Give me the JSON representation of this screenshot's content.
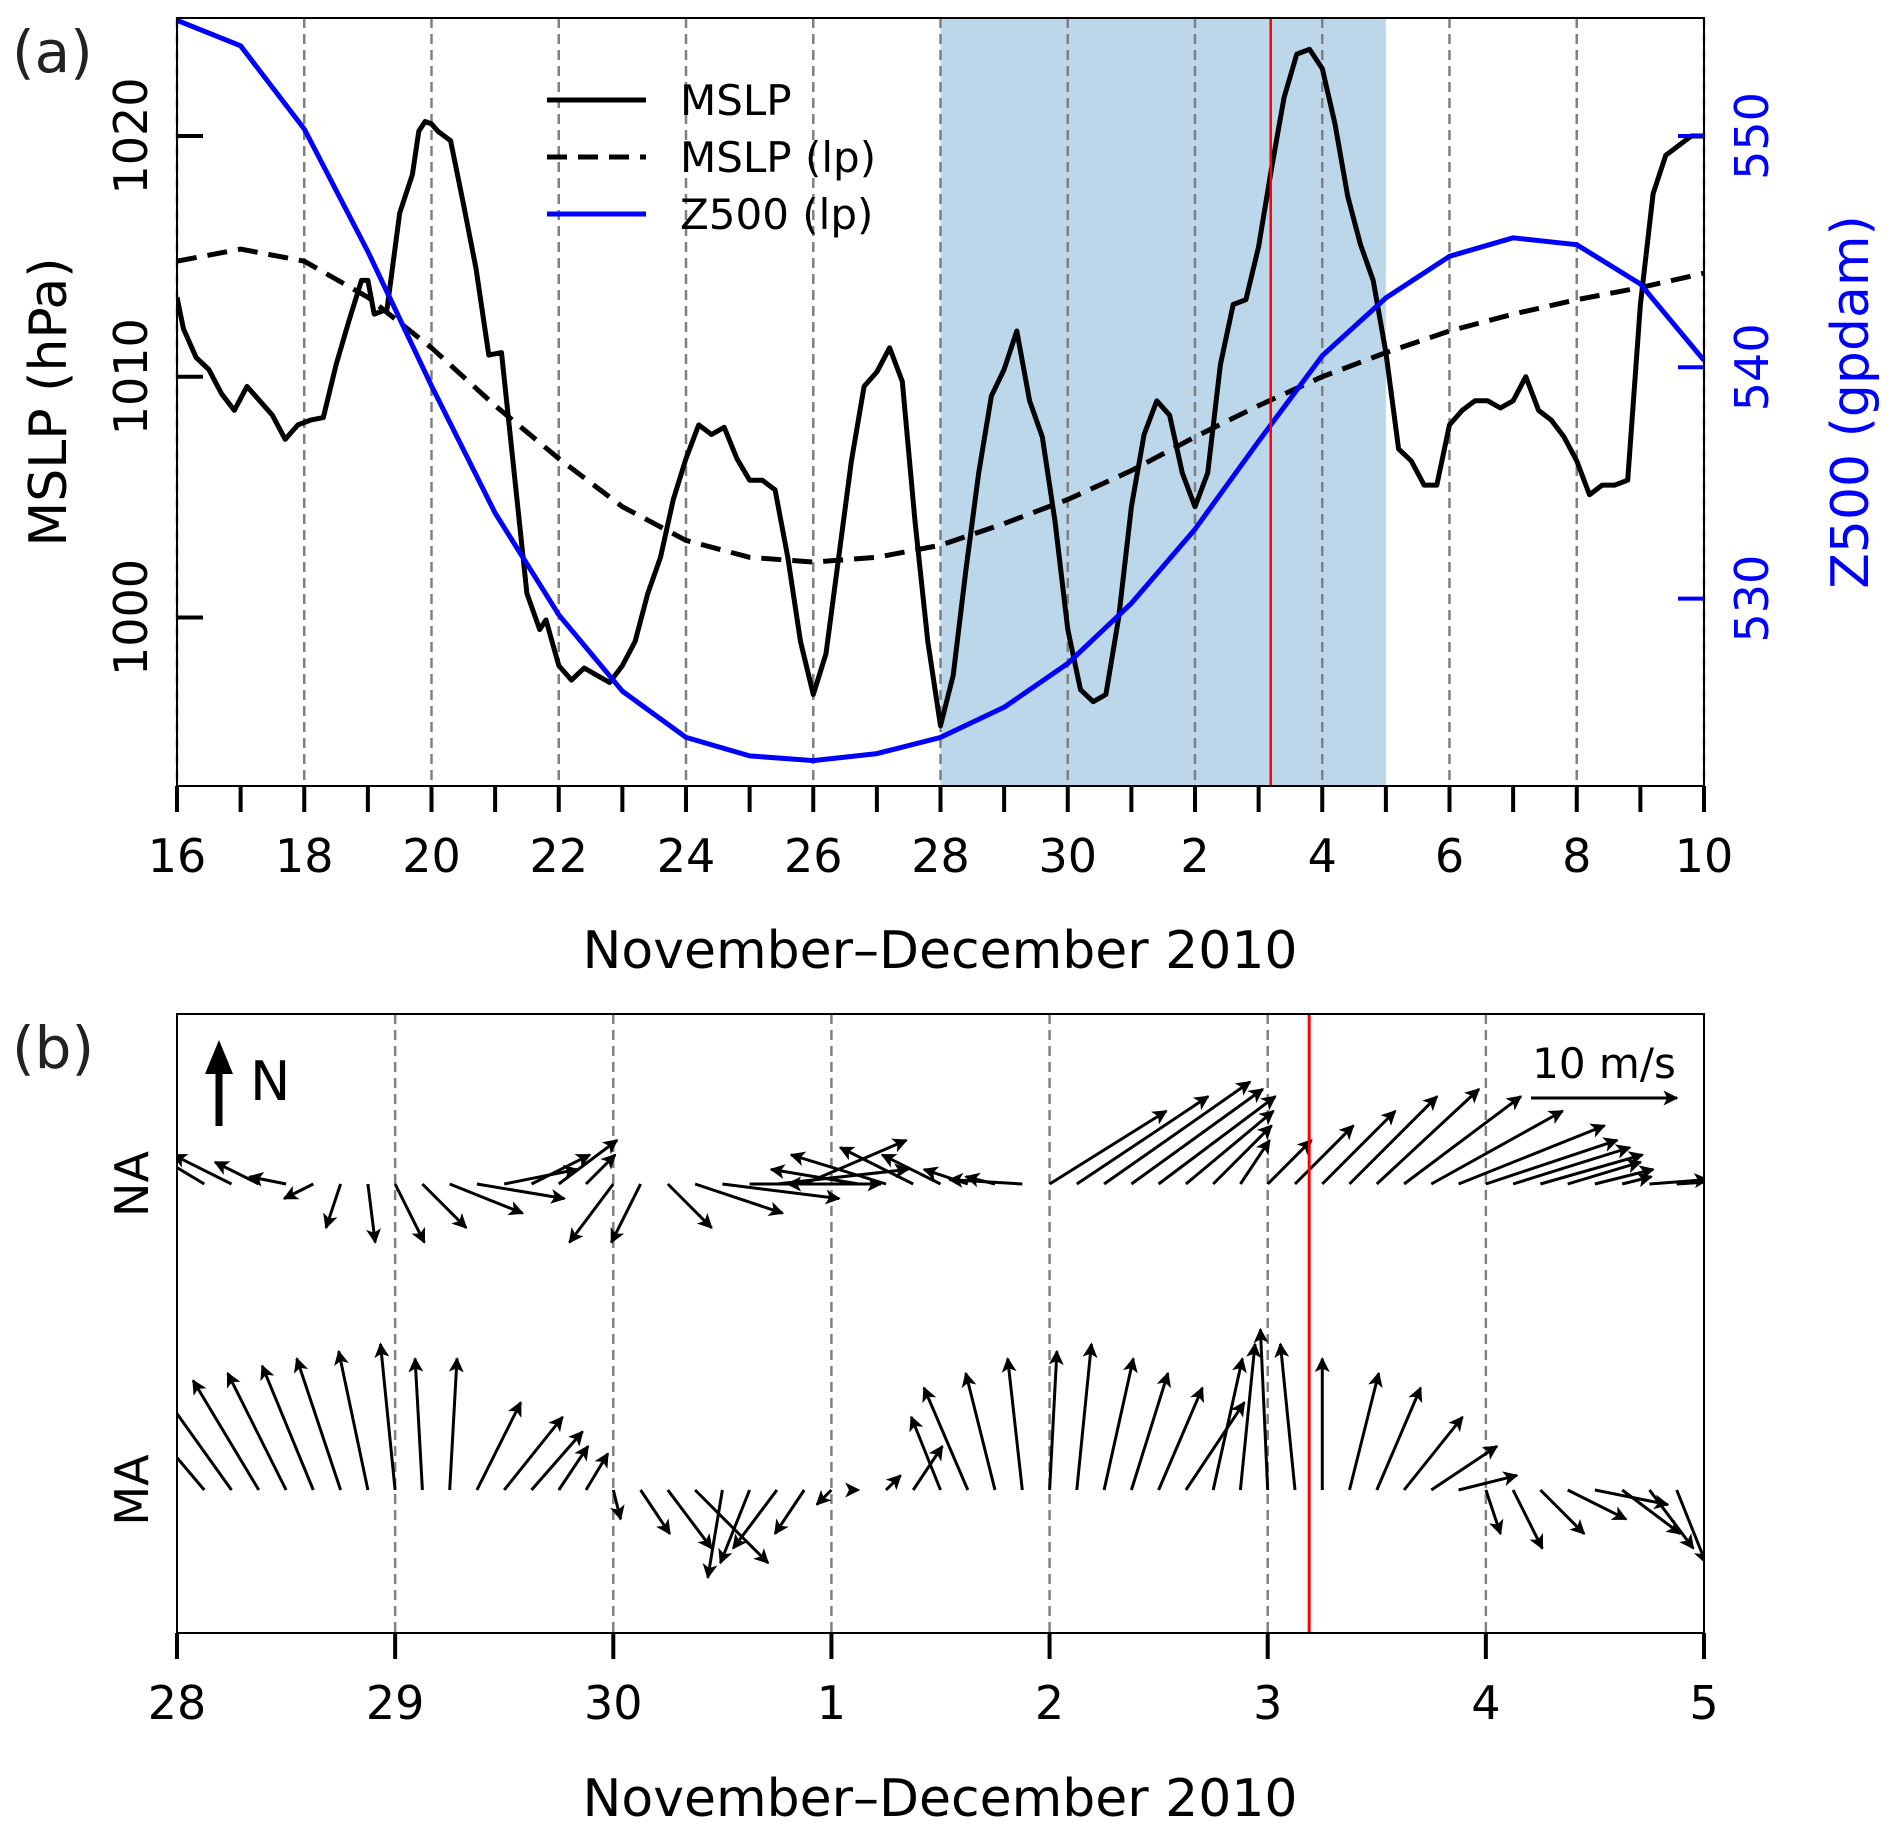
{
  "figure": {
    "panel_a_label": "(a)",
    "panel_b_label": "(b)"
  },
  "chart_data": [
    {
      "type": "line",
      "panel": "a",
      "xlabel": "November–December 2010",
      "ylabel": "MSLP (hPa)",
      "y2label": "Z500 (gpdam)",
      "x_unit": "days since 16 November 2010 00 UTC",
      "xlim": [
        0,
        24
      ],
      "xticks": [
        0,
        2,
        4,
        6,
        8,
        10,
        12,
        14,
        16,
        18,
        20,
        22,
        24
      ],
      "xtick_labels": [
        "16",
        "18",
        "20",
        "22",
        "24",
        "26",
        "28",
        "30",
        "2",
        "4",
        "6",
        "8",
        "10"
      ],
      "minor_xticks_every_days": 1,
      "gridlines_x_every_days": 2,
      "gridlines_style": "dashed-gray-vertical",
      "ylim": [
        993.0,
        1024.9
      ],
      "yticks": [
        1000,
        1010,
        1020
      ],
      "y2lim": [
        521.9,
        555.1
      ],
      "y2ticks": [
        530,
        540,
        550
      ],
      "y2_color": "#0000ff",
      "legend": {
        "position": "upper-center",
        "entries": [
          {
            "label": "MSLP",
            "style": "solid",
            "color": "#000000"
          },
          {
            "label": "MSLP (lp)",
            "style": "dashed",
            "color": "#000000"
          },
          {
            "label": "Z500 (lp)",
            "style": "solid",
            "color": "#0000ff"
          }
        ]
      },
      "shaded_span": {
        "start": 12,
        "end": 19,
        "color": "#bcd6ea",
        "description": "28 Nov – 5 Dec"
      },
      "event_line": {
        "x": 17.19,
        "color": "#ff0000"
      },
      "series": [
        {
          "name": "MSLP",
          "axis": "left",
          "color": "#000000",
          "style": "solid",
          "x": [
            0,
            0.1,
            0.3,
            0.5,
            0.7,
            0.9,
            1.1,
            1.3,
            1.5,
            1.7,
            1.9,
            2.1,
            2.3,
            2.5,
            2.7,
            2.9,
            3.0,
            3.1,
            3.3,
            3.5,
            3.7,
            3.8,
            3.9,
            4.0,
            4.1,
            4.3,
            4.5,
            4.7,
            4.9,
            5.1,
            5.3,
            5.5,
            5.7,
            5.8,
            6.0,
            6.2,
            6.4,
            6.6,
            6.8,
            7.0,
            7.2,
            7.4,
            7.6,
            7.8,
            8.0,
            8.2,
            8.4,
            8.6,
            8.8,
            9.0,
            9.2,
            9.4,
            9.6,
            9.8,
            10.0,
            10.2,
            10.4,
            10.6,
            10.8,
            11.0,
            11.2,
            11.4,
            11.6,
            11.8,
            12.0,
            12.2,
            12.4,
            12.6,
            12.8,
            13.0,
            13.2,
            13.4,
            13.6,
            13.8,
            14.0,
            14.2,
            14.4,
            14.6,
            14.8,
            15.0,
            15.2,
            15.4,
            15.6,
            15.8,
            16.0,
            16.2,
            16.4,
            16.6,
            16.8,
            17.0,
            17.2,
            17.4,
            17.6,
            17.8,
            18.0,
            18.2,
            18.4,
            18.6,
            18.8,
            19.0,
            19.2,
            19.4,
            19.6,
            19.8,
            20.0,
            20.2,
            20.4,
            20.6,
            20.8,
            21.0,
            21.2,
            21.4,
            21.6,
            21.8,
            22.0,
            22.2,
            22.4,
            22.6,
            22.8,
            23.0,
            23.2,
            23.4,
            23.6,
            23.8,
            24.0
          ],
          "values": [
            1013.3,
            1012.0,
            1010.8,
            1010.3,
            1009.3,
            1008.6,
            1009.6,
            1009.0,
            1008.4,
            1007.4,
            1008.0,
            1008.2,
            1008.3,
            1010.5,
            1012.3,
            1014.0,
            1014.0,
            1012.6,
            1012.8,
            1016.8,
            1018.4,
            1020.2,
            1020.6,
            1020.5,
            1020.2,
            1019.8,
            1017.2,
            1014.5,
            1010.9,
            1011.0,
            1006.0,
            1001.0,
            999.5,
            999.9,
            998.0,
            997.4,
            997.9,
            997.6,
            997.3,
            998.0,
            999.0,
            1001.0,
            1002.5,
            1004.9,
            1006.6,
            1008.0,
            1007.6,
            1007.9,
            1006.6,
            1005.7,
            1005.7,
            1005.3,
            1002.5,
            999.0,
            996.8,
            998.5,
            1002.5,
            1006.5,
            1009.6,
            1010.2,
            1011.2,
            1009.8,
            1004.0,
            999.0,
            995.5,
            997.6,
            1002.0,
            1006.0,
            1009.2,
            1010.3,
            1011.9,
            1009.0,
            1007.5,
            1004.0,
            999.5,
            997.0,
            996.5,
            996.8,
            1000.0,
            1004.6,
            1007.6,
            1009.0,
            1008.4,
            1006.0,
            1004.6,
            1006.0,
            1010.5,
            1013.0,
            1013.2,
            1015.4,
            1018.6,
            1021.6,
            1023.4,
            1023.6,
            1022.8,
            1020.5,
            1017.5,
            1015.5,
            1014.0,
            1011.0,
            1007.0,
            1006.5,
            1005.5,
            1005.5,
            1008.0,
            1008.6,
            1009.0,
            1009.0,
            1008.7,
            1009.0,
            1010.0,
            1008.6,
            1008.2,
            1007.5,
            1006.5,
            1005.1,
            1005.5,
            1005.5,
            1005.7,
            1013.0,
            1017.6,
            1019.2,
            1019.6,
            1020.0,
            1020.0
          ]
        },
        {
          "name": "MSLP (lp)",
          "axis": "left",
          "color": "#000000",
          "style": "dashed",
          "x": [
            0,
            1,
            2,
            3,
            4,
            5,
            6,
            7,
            8,
            9,
            10,
            11,
            12,
            13,
            14,
            15,
            16,
            17,
            18,
            19,
            20,
            21,
            22,
            23,
            24
          ],
          "values": [
            1014.8,
            1015.3,
            1014.8,
            1013.3,
            1011.2,
            1008.8,
            1006.6,
            1004.6,
            1003.2,
            1002.5,
            1002.3,
            1002.5,
            1003.0,
            1003.9,
            1004.9,
            1006.1,
            1007.5,
            1008.8,
            1010.0,
            1011.0,
            1011.9,
            1012.6,
            1013.2,
            1013.7,
            1014.3
          ]
        },
        {
          "name": "Z500 (lp)",
          "axis": "right",
          "color": "#0000ff",
          "style": "solid",
          "x": [
            0,
            1,
            2,
            3,
            4,
            5,
            6,
            7,
            8,
            9,
            10,
            11,
            12,
            13,
            14,
            15,
            16,
            17,
            18,
            19,
            20,
            21,
            22,
            23,
            24
          ],
          "values": [
            555.0,
            553.9,
            550.3,
            545.0,
            539.2,
            533.7,
            529.3,
            526.0,
            524.0,
            523.2,
            523.0,
            523.3,
            524.0,
            525.3,
            527.2,
            529.8,
            533.0,
            536.8,
            540.5,
            543.0,
            544.8,
            545.6,
            545.3,
            543.6,
            540.3
          ]
        }
      ]
    },
    {
      "type": "quiver",
      "panel": "b",
      "xlabel": "November–December 2010",
      "x_unit": "days since 28 November 2010 00 UTC",
      "xlim": [
        0,
        7
      ],
      "xticks": [
        0,
        1,
        2,
        3,
        4,
        5,
        6,
        7
      ],
      "xtick_labels": [
        "28",
        "29",
        "30",
        "1",
        "2",
        "3",
        "4",
        "5"
      ],
      "gridlines_x_every_days": 1,
      "event_line": {
        "x": 5.19,
        "color": "#ff0000"
      },
      "north_indicator": "N",
      "scale_arrow": {
        "label": "10 m/s",
        "speed_ms": 10
      },
      "rows": [
        {
          "label": "NA",
          "time_step_hours": 3,
          "u": [
            -6,
            -5,
            -4,
            -3,
            -2.5,
            -2,
            -1,
            0.5,
            2,
            3,
            5,
            6,
            5,
            4,
            4,
            2,
            -3,
            -2,
            3,
            6,
            8,
            9,
            9,
            7,
            -3,
            -6,
            -6.5,
            -5,
            -4,
            -3,
            -2,
            -5,
            8,
            9,
            10,
            9,
            8,
            6,
            4,
            2,
            3,
            4,
            5,
            6,
            7,
            8,
            9,
            10,
            9,
            8,
            7,
            5,
            4,
            2,
            4,
            3
          ],
          "v": [
            4,
            3,
            2,
            1.5,
            0.5,
            -1,
            -3,
            -4,
            -4,
            -3,
            -2,
            -1,
            1,
            2,
            3,
            2,
            -4,
            -4,
            -3,
            -2,
            -1,
            0,
            1,
            3,
            0,
            1,
            2,
            2.5,
            2,
            1,
            0.5,
            0.3,
            5,
            6,
            7,
            6.5,
            6,
            5,
            4,
            3,
            3,
            4,
            5,
            6,
            6.5,
            6,
            5,
            4,
            3,
            2.5,
            2,
            1.5,
            1,
            0.5,
            0.3,
            0.2
          ]
        },
        {
          "label": "MA",
          "time_step_hours": 3,
          "u": [
            -6,
            -5.5,
            -5,
            -4.5,
            -4,
            -3.5,
            -3,
            -2,
            -1,
            -0.5,
            0.5,
            3,
            4,
            3.5,
            2,
            1.5,
            0.5,
            2,
            3,
            5,
            -1,
            -2,
            -3,
            -2,
            -1,
            0,
            1,
            2,
            -2,
            -3,
            -2,
            -1,
            0.5,
            1,
            2,
            2.5,
            3,
            4,
            2,
            1,
            -0.5,
            -1,
            0,
            2,
            3,
            4,
            4.5,
            4,
            1,
            2,
            3,
            4,
            5,
            4,
            3,
            2
          ],
          "v": [
            6,
            6.5,
            7,
            7.5,
            8,
            8.5,
            9,
            9.5,
            10,
            9,
            9,
            6,
            5,
            4,
            3,
            2.5,
            -2,
            -3,
            -4,
            -5,
            -6,
            -5,
            -4,
            -3,
            -1,
            0,
            1,
            3,
            5,
            7,
            8,
            9,
            9.5,
            10,
            9,
            8,
            7,
            6,
            9,
            10,
            11,
            10,
            9,
            8,
            7,
            5,
            3,
            1,
            -3,
            -4,
            -3,
            -2,
            -1,
            -3,
            -4,
            -5
          ]
        }
      ]
    }
  ]
}
